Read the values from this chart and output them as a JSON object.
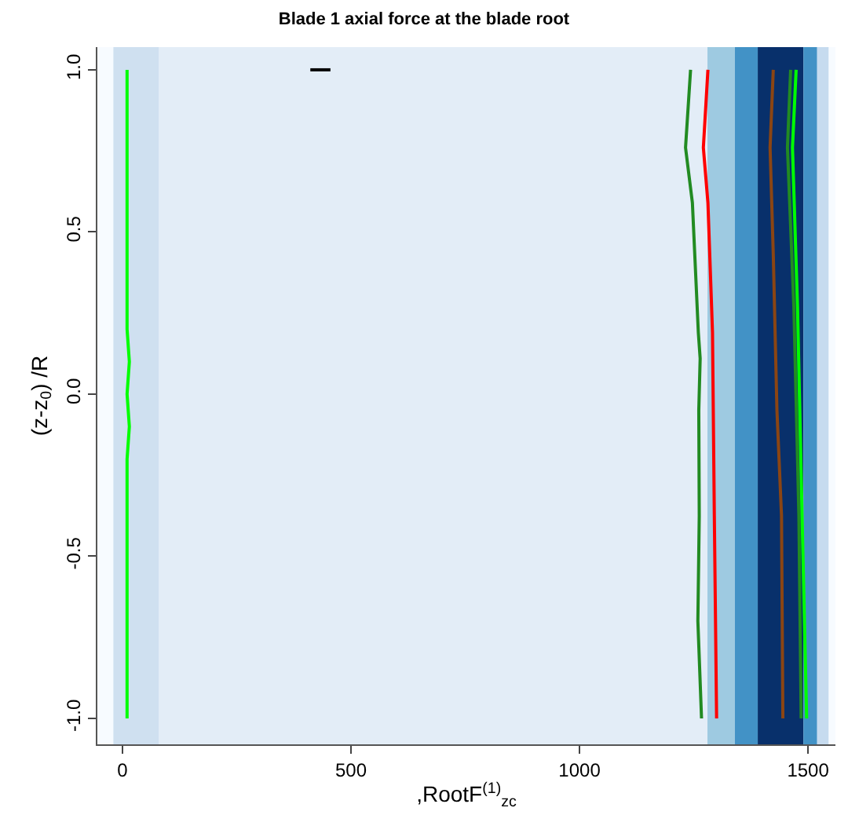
{
  "chart_data": {
    "type": "line",
    "title": "Blade 1 axial force at the blade root",
    "xlabel": ",RootF$^{(1)}$$_{zc}$",
    "ylabel": "(z-z$_{0}$) /R",
    "xlim": [
      -55,
      1560
    ],
    "ylim": [
      -1.08,
      1.07
    ],
    "xticks": [
      0,
      500,
      1000,
      1500
    ],
    "yticks": [
      {
        "value": -1,
        "label": "-1.0"
      },
      {
        "value": -0.5,
        "label": "-0.5"
      },
      {
        "value": 0,
        "label": "0.0"
      },
      {
        "value": 0.5,
        "label": "0.5"
      },
      {
        "value": 1,
        "label": "1.0"
      }
    ],
    "marker": "none",
    "line_style": "solid",
    "bands": [
      {
        "axis": "x",
        "from": -20,
        "to": 80,
        "color": "#cfe0f0"
      },
      {
        "axis": "x",
        "from": 80,
        "to": 1280,
        "color": "#e3edf7"
      },
      {
        "axis": "x",
        "from": 1280,
        "to": 1340,
        "color": "#9ecae1"
      },
      {
        "axis": "x",
        "from": 1340,
        "to": 1390,
        "color": "#4292c6"
      },
      {
        "axis": "x",
        "from": 1390,
        "to": 1490,
        "color": "#08306b"
      },
      {
        "axis": "x",
        "from": 1490,
        "to": 1520,
        "color": "#4292c6"
      },
      {
        "axis": "x",
        "from": 1520,
        "to": 1545,
        "color": "#c6dbef"
      }
    ],
    "series": [
      {
        "color": "#00ff00",
        "x": [
          10,
          10,
          15,
          10,
          15,
          10,
          10
        ],
        "values": [
          1,
          0.2,
          0.1,
          0,
          -0.1,
          -0.2,
          -1
        ]
      },
      {
        "color": "#228b22",
        "x": [
          1243,
          1232,
          1247,
          1260,
          1264,
          1261,
          1262,
          1259,
          1267
        ],
        "values": [
          1,
          0.76,
          0.59,
          0.19,
          0.11,
          -0.05,
          -0.375,
          -0.7,
          -1
        ]
      },
      {
        "color": "#ff0000",
        "x": [
          1281,
          1271,
          1281,
          1291,
          1295,
          1300
        ],
        "values": [
          1,
          0.76,
          0.59,
          0.19,
          -0.375,
          -1
        ]
      },
      {
        "color": "#8b4513",
        "x": [
          1424,
          1417,
          1424,
          1432,
          1442,
          1445
        ],
        "values": [
          1,
          0.76,
          0.43,
          -0.05,
          -0.375,
          -1
        ]
      },
      {
        "color": "#228b22",
        "x": [
          1462,
          1455,
          1469,
          1480,
          1485
        ],
        "values": [
          1,
          0.76,
          0.27,
          -0.375,
          -1
        ]
      },
      {
        "color": "#00ff00",
        "x": [
          1474,
          1466,
          1477,
          1487,
          1497
        ],
        "values": [
          1,
          0.76,
          0.27,
          -0.375,
          -1
        ]
      },
      {
        "color": "#000000",
        "x": [
          411,
          455
        ],
        "values": [
          1,
          1
        ]
      }
    ]
  }
}
